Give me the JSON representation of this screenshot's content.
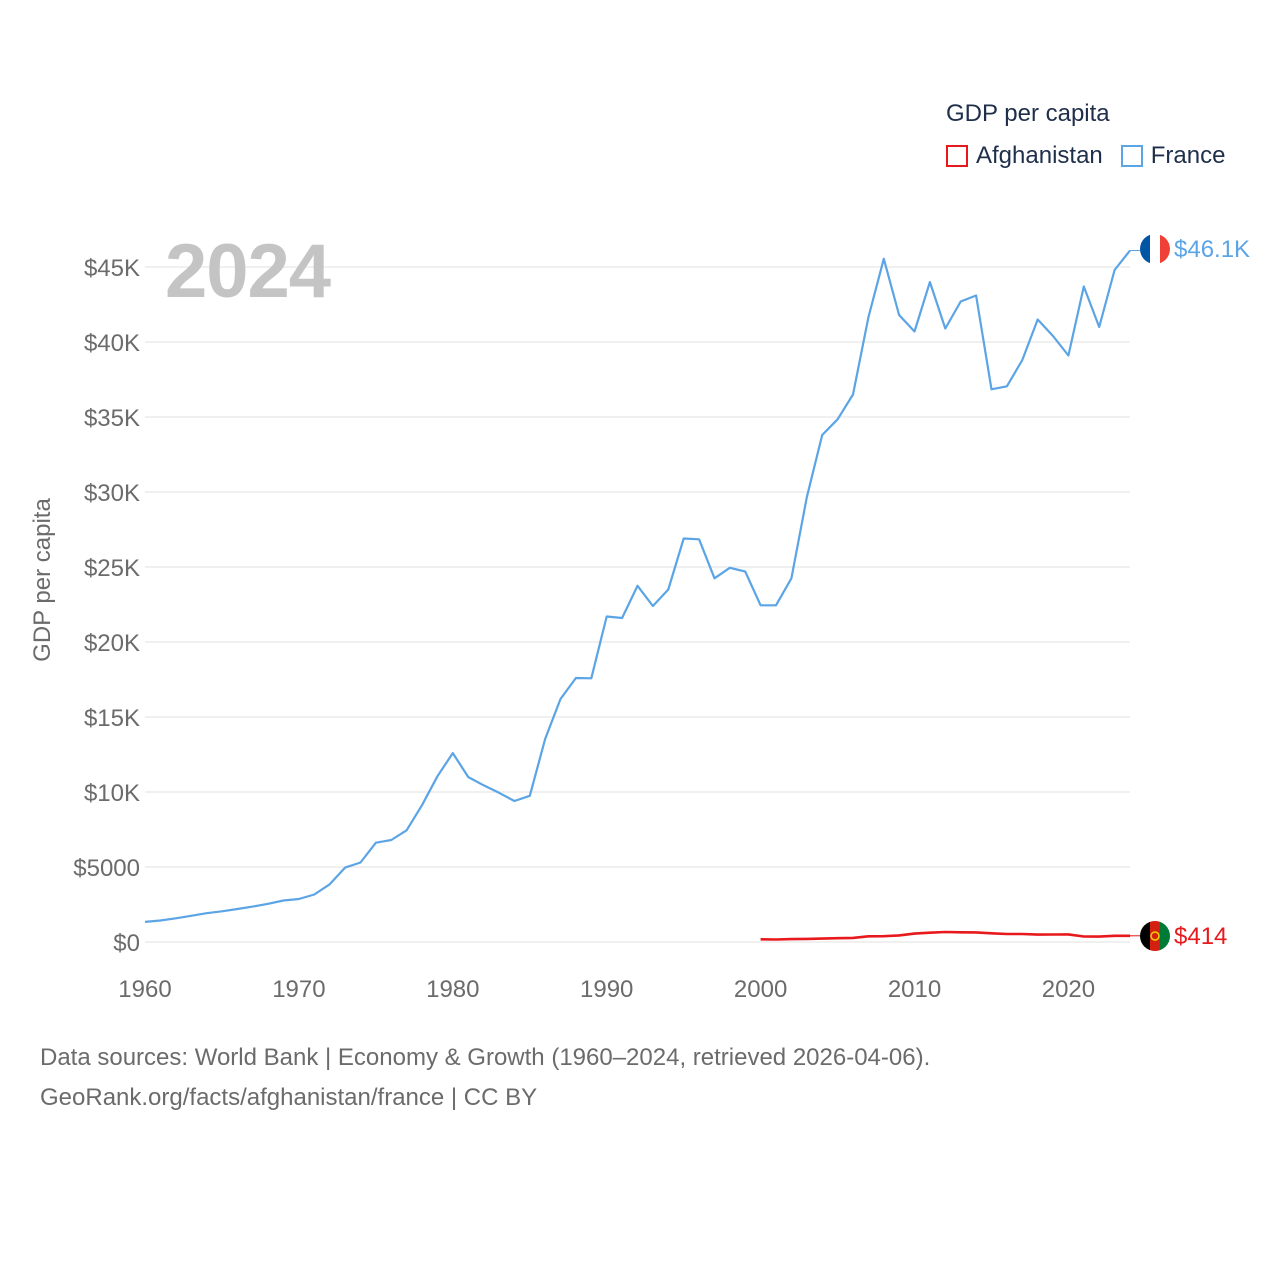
{
  "chart_data": {
    "type": "line",
    "title": "GDP per capita",
    "ylabel": "GDP per capita",
    "xlabel": "",
    "current_year": "2024",
    "xlim": [
      1960,
      2024
    ],
    "ylim": [
      0,
      47000
    ],
    "x_ticks": [
      1960,
      1970,
      1980,
      1990,
      2000,
      2010,
      2020
    ],
    "y_ticks": [
      {
        "value": 0,
        "label": "$0"
      },
      {
        "value": 5000,
        "label": "$5000"
      },
      {
        "value": 10000,
        "label": "$10K"
      },
      {
        "value": 15000,
        "label": "$15K"
      },
      {
        "value": 20000,
        "label": "$20K"
      },
      {
        "value": 25000,
        "label": "$25K"
      },
      {
        "value": 30000,
        "label": "$30K"
      },
      {
        "value": 35000,
        "label": "$35K"
      },
      {
        "value": 40000,
        "label": "$40K"
      },
      {
        "value": 45000,
        "label": "$45K"
      }
    ],
    "grid": true,
    "legend_position": "top-right",
    "series": [
      {
        "name": "Afghanistan",
        "color": "#e8191c",
        "end_label": "$414",
        "flag_icon": "afghanistan-flag-icon",
        "x": [
          2000,
          2001,
          2002,
          2003,
          2004,
          2005,
          2006,
          2007,
          2008,
          2009,
          2010,
          2011,
          2012,
          2013,
          2014,
          2015,
          2016,
          2017,
          2018,
          2019,
          2020,
          2021,
          2022,
          2023,
          2024
        ],
        "values": [
          180,
          170,
          195,
          210,
          225,
          255,
          275,
          380,
          385,
          440,
          560,
          620,
          665,
          650,
          640,
          580,
          530,
          530,
          495,
          500,
          510,
          370,
          360,
          415,
          414
        ]
      },
      {
        "name": "France",
        "color": "#5ba4e5",
        "end_label": "$46.1K",
        "flag_icon": "france-flag-icon",
        "x": [
          1960,
          1961,
          1962,
          1963,
          1964,
          1965,
          1966,
          1967,
          1968,
          1969,
          1970,
          1971,
          1972,
          1973,
          1974,
          1975,
          1976,
          1977,
          1978,
          1979,
          1980,
          1981,
          1982,
          1983,
          1984,
          1985,
          1986,
          1987,
          1988,
          1989,
          1990,
          1991,
          1992,
          1993,
          1994,
          1995,
          1996,
          1997,
          1998,
          1999,
          2000,
          2001,
          2002,
          2003,
          2004,
          2005,
          2006,
          2007,
          2008,
          2009,
          2010,
          2011,
          2012,
          2013,
          2014,
          2015,
          2016,
          2017,
          2018,
          2019,
          2020,
          2021,
          2022,
          2023,
          2024
        ],
        "values": [
          1340,
          1430,
          1580,
          1750,
          1920,
          2050,
          2200,
          2360,
          2550,
          2770,
          2870,
          3170,
          3850,
          4960,
          5300,
          6620,
          6800,
          7450,
          9120,
          11050,
          12590,
          11000,
          10450,
          9950,
          9400,
          9750,
          13550,
          16200,
          17600,
          17580,
          21700,
          21600,
          23750,
          22400,
          23500,
          26900,
          26850,
          24250,
          24950,
          24700,
          22450,
          22450,
          24250,
          29650,
          33800,
          34850,
          36500,
          41650,
          45550,
          41800,
          40700,
          44000,
          40900,
          42700,
          43100,
          36850,
          37050,
          38800,
          41500,
          40400,
          39100,
          43700,
          41000,
          44800,
          46100
        ]
      }
    ]
  },
  "legend": {
    "title": "GDP per capita",
    "items": [
      "Afghanistan",
      "France"
    ]
  },
  "footer": {
    "line1": "Data sources: World Bank | Economy & Growth (1960–2024, retrieved 2026-04-06).",
    "line2": "GeoRank.org/facts/afghanistan/france | CC BY"
  },
  "colors": {
    "grid": "#e6e6e6",
    "axis_text": "#6b6b6b",
    "year_label": "#c4c4c4",
    "legend_text": "#1f2f4a"
  }
}
